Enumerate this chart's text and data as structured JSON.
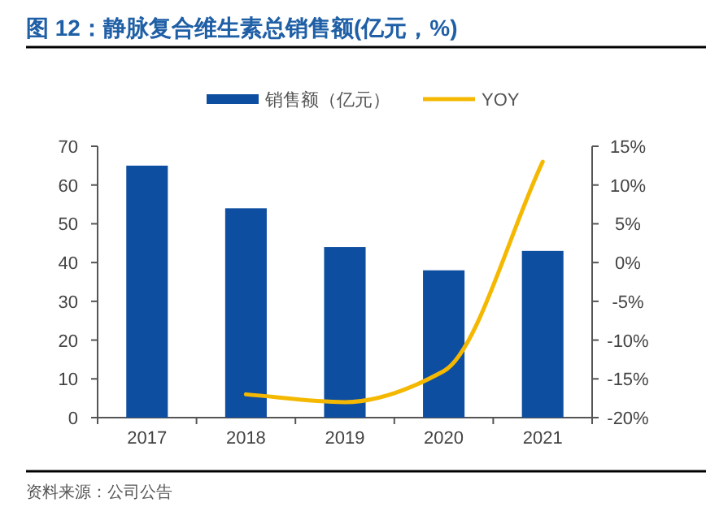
{
  "chart_data": {
    "type": "bar",
    "title": "图 12：静脉复合维生素总销售额(亿元，%)",
    "categories": [
      "2017",
      "2018",
      "2019",
      "2020",
      "2021"
    ],
    "series": [
      {
        "name": "销售额（亿元）",
        "color": "#0d4ea1",
        "values": [
          65,
          54,
          44,
          38,
          43
        ]
      },
      {
        "name": "YOY",
        "type": "line",
        "axis": "y2",
        "color": "#f5b800",
        "values": [
          null,
          -17,
          -18,
          -14,
          13
        ]
      }
    ],
    "ylim": [
      0,
      70
    ],
    "yticks": [
      0,
      10,
      20,
      30,
      40,
      50,
      60,
      70
    ],
    "y2lim": [
      -20,
      15
    ],
    "y2ticks": [
      {
        "value": -20,
        "label": "-20%"
      },
      {
        "value": -15,
        "label": "-15%"
      },
      {
        "value": -10,
        "label": "-10%"
      },
      {
        "value": -5,
        "label": "-5%"
      },
      {
        "value": 0,
        "label": "0%"
      },
      {
        "value": 5,
        "label": "5%"
      },
      {
        "value": 10,
        "label": "10%"
      },
      {
        "value": 15,
        "label": "15%"
      }
    ],
    "legend": "top",
    "grid": false,
    "annotations": [
      "资料来源：公司公告"
    ]
  }
}
